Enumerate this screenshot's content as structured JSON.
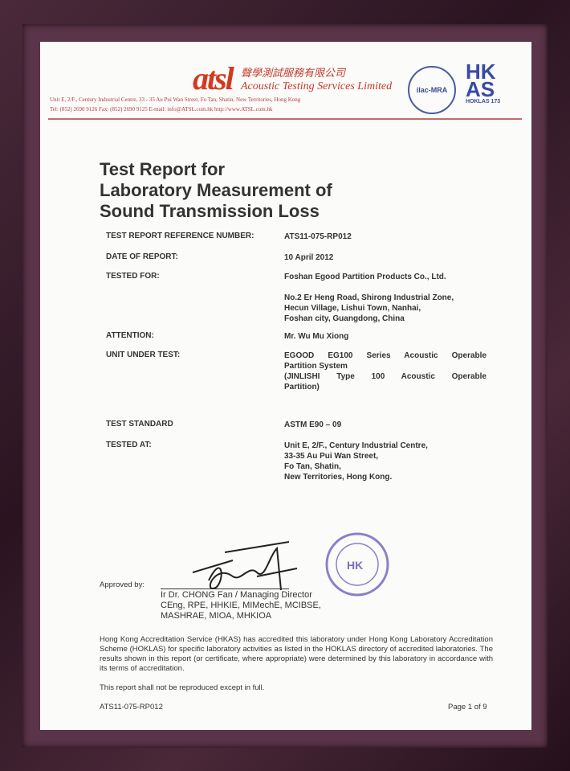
{
  "header": {
    "logo": "atsl",
    "company_cn": "聲學測試服務有限公司",
    "company_en": "Acoustic Testing Services Limited",
    "address": "Unit E, 2/F., Century Industrial Centre, 33 - 35 Au Pui Wan Street, Fo Tan, Shatin, New Territories, Hong Kong",
    "contact": "Tel: (852) 2690 9126     Fax: (852) 2690 9125     E-mail: info@ATSL.com.hk     http://www.ATSL.com.hk",
    "ilac": "ilac-MRA",
    "hkas": "HKAS",
    "hokl": "HOKLAS 173"
  },
  "title": [
    "Test Report for",
    "Laboratory Measurement of",
    "Sound Transmission Loss"
  ],
  "fields": [
    {
      "label": "TEST REPORT REFERENCE NUMBER:",
      "value": [
        "ATS11-075-RP012"
      ]
    },
    {
      "label": "DATE OF REPORT:",
      "value": [
        "10 April 2012"
      ]
    },
    {
      "label": "TESTED FOR:",
      "value": [
        "Foshan Egood Partition Products Co., Ltd.",
        "",
        "No.2 Er Heng Road, Shirong Industrial Zone,",
        "Hecun Village, Lishui Town, Nanhai,",
        "Foshan city, Guangdong, China"
      ]
    },
    {
      "label": "ATTENTION:",
      "value": [
        "Mr. Wu Mu Xiong"
      ]
    },
    {
      "label": "UNIT UNDER TEST:",
      "value": [
        "EGOOD EG100 Series Acoustic Operable",
        "Partition System",
        "(JINLISHI Type 100 Acoustic Operable",
        "Partition)"
      ]
    },
    {
      "label": "TEST STANDARD",
      "value": [
        "ASTM E90 – 09"
      ]
    },
    {
      "label": "TESTED AT:",
      "value": [
        "Unit E, 2/F., Century Industrial Centre,",
        "33-35 Au Pui Wan Street,",
        "Fo Tan, Shatin,",
        "New Territories, Hong Kong."
      ]
    }
  ],
  "approval": {
    "label": "Approved by:",
    "name": "Ir Dr. CHONG Fan / Managing Director",
    "quals": [
      "CEng, RPE, HHKIE, MIMechE, MCIBSE,",
      "MASHRAE, MIOA, MHKIOA"
    ],
    "stamp": "Acoustic Testing Services Limited"
  },
  "accreditation": "Hong Kong Accreditation Service (HKAS) has accredited this laboratory under Hong Kong Laboratory Accreditation Scheme (HOKLAS) for specific laboratory activities as listed in the HOKLAS directory of accredited laboratories. The results shown in this report (or certificate, where appropriate) were determined by this laboratory in accordance with its terms of accreditation.",
  "reproduction": "This report shall not be reproduced except in full.",
  "footer": {
    "ref": "ATS11-075-RP012",
    "page": "Page 1 of 9"
  }
}
